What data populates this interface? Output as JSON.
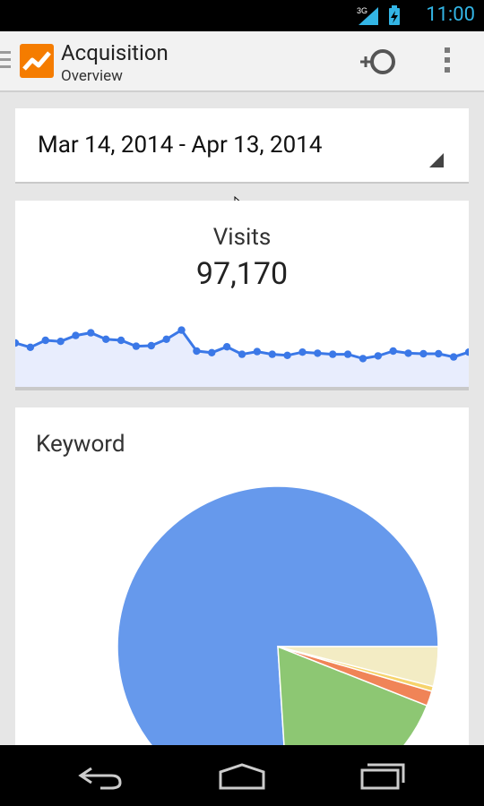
{
  "status_bar": {
    "network": "3G",
    "time": "11:00"
  },
  "action_bar": {
    "title": "Acquisition",
    "subtitle": "Overview"
  },
  "date_range": {
    "label": "Mar 14, 2014 - Apr 13, 2014"
  },
  "visits": {
    "label": "Visits",
    "value": "97,170"
  },
  "keyword": {
    "title": "Keyword"
  },
  "colors": {
    "line": "#3b78e7",
    "area": "#e8edfd",
    "pie_blue": "#6699ec",
    "pie_green": "#8dc773",
    "pie_orange": "#f08457",
    "pie_yellow": "#f6d36b",
    "pie_cream": "#f3ecc4"
  },
  "chart_data": [
    {
      "type": "line",
      "values": [
        3050,
        2970,
        3100,
        3080,
        3190,
        3240,
        3120,
        3100,
        2990,
        3000,
        3120,
        3290,
        2900,
        2870,
        2980,
        2840,
        2890,
        2840,
        2820,
        2880,
        2860,
        2840,
        2840,
        2760,
        2810,
        2900,
        2860,
        2850,
        2850,
        2790,
        2880
      ],
      "ylim": [
        2200,
        3700
      ]
    },
    {
      "type": "pie",
      "slices": [
        {
          "value": 76.0,
          "color": "#6699ec"
        },
        {
          "value": 18.0,
          "color": "#8dc773"
        },
        {
          "value": 1.5,
          "color": "#f08457"
        },
        {
          "value": 0.5,
          "color": "#f6d36b"
        },
        {
          "value": 4.0,
          "color": "#f3ecc4"
        }
      ]
    }
  ]
}
